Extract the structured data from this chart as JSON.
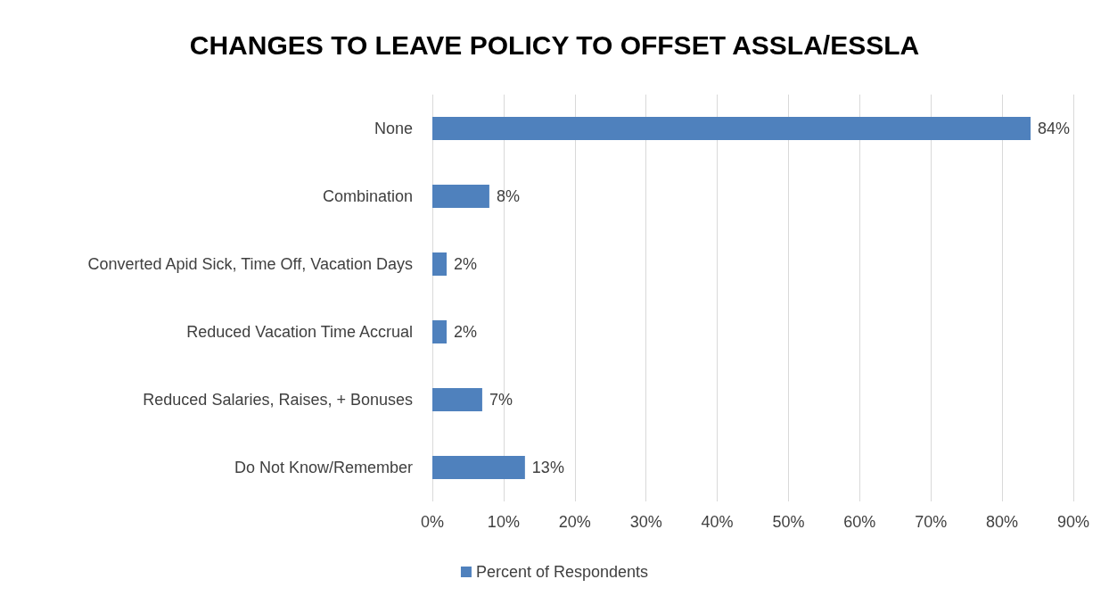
{
  "chart_data": {
    "type": "bar",
    "orientation": "horizontal",
    "title": "CHANGES TO LEAVE POLICY TO OFFSET ASSLA/ESSLA",
    "categories": [
      "None",
      "Combination",
      "Converted Apid Sick, Time Off, Vacation Days",
      "Reduced Vacation Time Accrual",
      "Reduced Salaries, Raises, + Bonuses",
      "Do Not Know/Remember"
    ],
    "series": [
      {
        "name": "Percent of Respondents",
        "color": "#4f81bd",
        "values": [
          84,
          8,
          2,
          2,
          7,
          13
        ],
        "value_labels": [
          "84%",
          "8%",
          "2%",
          "2%",
          "7%",
          "13%"
        ]
      }
    ],
    "xlim": [
      0,
      90
    ],
    "xticks": [
      {
        "value": 0,
        "label": "0%"
      },
      {
        "value": 10,
        "label": "10%"
      },
      {
        "value": 20,
        "label": "20%"
      },
      {
        "value": 30,
        "label": "30%"
      },
      {
        "value": 40,
        "label": "40%"
      },
      {
        "value": 50,
        "label": "50%"
      },
      {
        "value": 60,
        "label": "60%"
      },
      {
        "value": 70,
        "label": "70%"
      },
      {
        "value": 80,
        "label": "80%"
      },
      {
        "value": 90,
        "label": "90%"
      }
    ],
    "grid": "x",
    "legend": "bottom"
  }
}
